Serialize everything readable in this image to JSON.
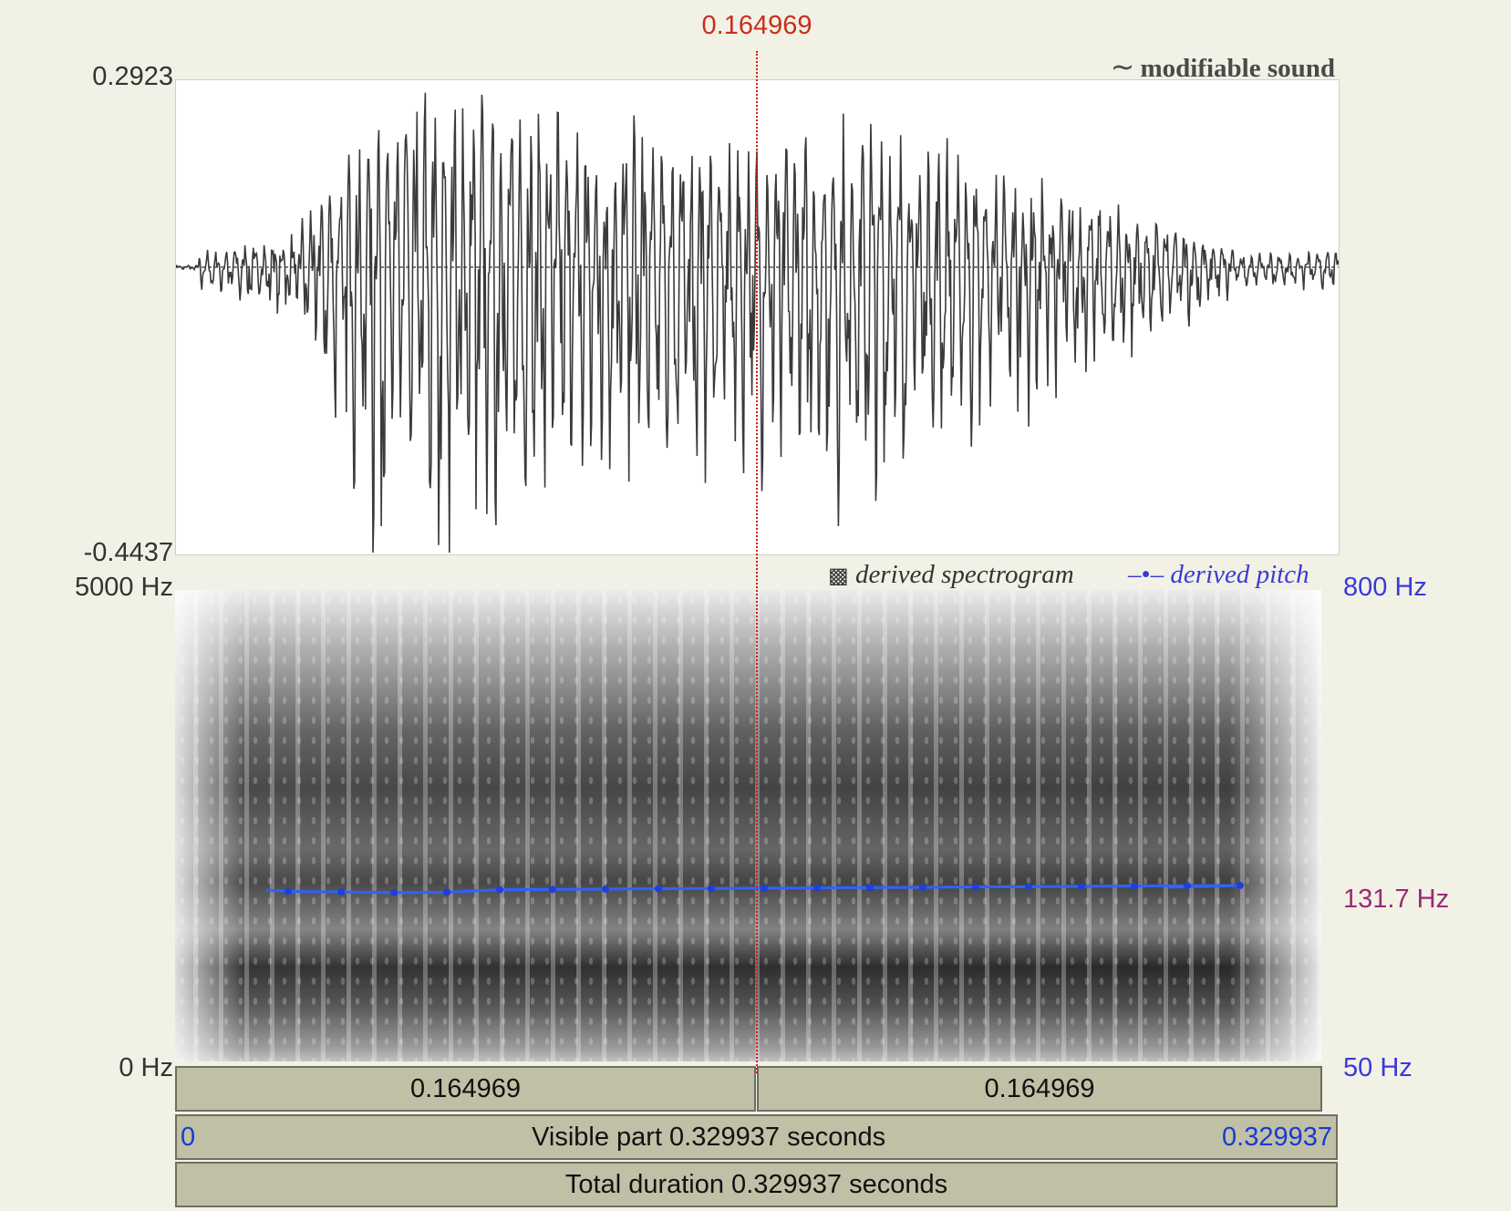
{
  "cursor": {
    "time_label": "0.164969",
    "fraction": 0.5
  },
  "waveform": {
    "title": "modifiable sound",
    "title_icon": "tilde-icon",
    "y_max_label": "0.2923",
    "y_min_label": "-0.4437",
    "y_max": 0.2923,
    "y_min": -0.4437,
    "color": "#333333"
  },
  "spectrogram": {
    "legend_label": "derived spectrogram",
    "legend_icon": "checker-square-icon",
    "freq_max_label": "5000 Hz",
    "freq_min_label": "0 Hz"
  },
  "pitch": {
    "legend_label": "derived pitch",
    "legend_icon": "dot-line-icon",
    "max_label": "800 Hz",
    "min_label": "50 Hz",
    "cursor_value_label": "131.7 Hz",
    "color": "#2f62ff",
    "label_color": "#3a3ad8",
    "cursor_label_color": "#9b2a72"
  },
  "time_bars": {
    "left_segment": "0.164969",
    "right_segment": "0.164969",
    "visible_start": "0",
    "visible_label": "Visible part 0.329937 seconds",
    "visible_end": "0.329937",
    "total_label": "Total duration 0.329937 seconds"
  }
}
